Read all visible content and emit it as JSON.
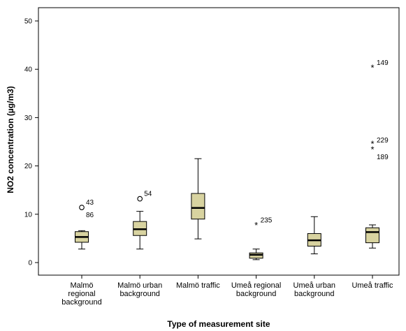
{
  "chart_data": {
    "type": "box",
    "title": "",
    "xlabel": "Type of measurement site",
    "ylabel": "NO2 concentration (µg/m3)",
    "ylim": [
      -2,
      52
    ],
    "yticks": [
      0,
      10,
      20,
      30,
      40,
      50
    ],
    "grid": false,
    "box_color": "#d8d3a0",
    "categories": [
      {
        "lines": [
          "Malmö",
          "regional",
          "background"
        ]
      },
      {
        "lines": [
          "Malmö urban",
          "background"
        ]
      },
      {
        "lines": [
          "Malmö traffic"
        ]
      },
      {
        "lines": [
          "Umeå regional",
          "background"
        ]
      },
      {
        "lines": [
          "Umeå urban",
          "background"
        ]
      },
      {
        "lines": [
          "Umeå traffic"
        ]
      }
    ],
    "boxes": [
      {
        "whisker_low": 2.8,
        "q1": 4.2,
        "median": 5.3,
        "q3": 6.4,
        "whisker_high": 6.6,
        "outliers": [
          {
            "value": 11.4,
            "marker": "circle",
            "label": "43"
          },
          {
            "value": 11.4,
            "marker": "circle",
            "label": "86"
          }
        ]
      },
      {
        "whisker_low": 2.8,
        "q1": 5.6,
        "median": 6.9,
        "q3": 8.5,
        "whisker_high": 10.6,
        "outliers": [
          {
            "value": 13.2,
            "marker": "circle",
            "label": "54"
          }
        ]
      },
      {
        "whisker_low": 4.9,
        "q1": 9.0,
        "median": 11.3,
        "q3": 14.3,
        "whisker_high": 21.5,
        "outliers": []
      },
      {
        "whisker_low": 0.6,
        "q1": 0.9,
        "median": 1.6,
        "q3": 2.0,
        "whisker_high": 2.8,
        "outliers": [
          {
            "value": 7.7,
            "marker": "star",
            "label": "235"
          }
        ]
      },
      {
        "whisker_low": 1.8,
        "q1": 3.4,
        "median": 4.6,
        "q3": 6.0,
        "whisker_high": 9.5,
        "outliers": []
      },
      {
        "whisker_low": 3.0,
        "q1": 4.1,
        "median": 6.3,
        "q3": 7.2,
        "whisker_high": 7.8,
        "outliers": [
          {
            "value": 40.3,
            "marker": "star",
            "label": "149"
          },
          {
            "value": 24.6,
            "marker": "star",
            "label": "229"
          },
          {
            "value": 23.4,
            "marker": "star",
            "label": "189"
          }
        ]
      }
    ]
  }
}
